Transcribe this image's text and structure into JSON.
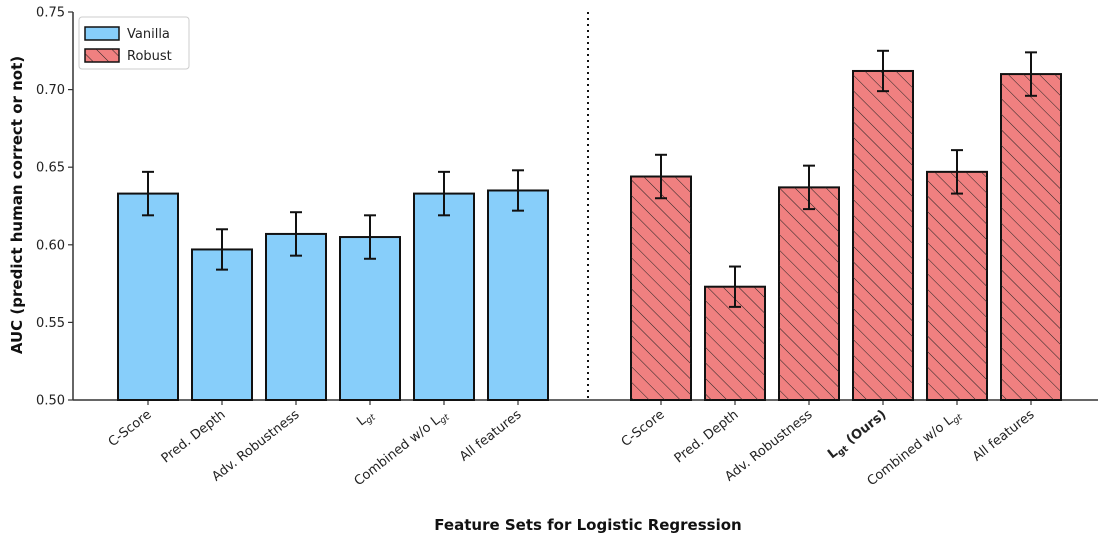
{
  "chart_data": {
    "type": "bar",
    "xlabel": "Feature Sets for Logistic Regression",
    "ylabel": "AUC (predict human correct or not)",
    "ylim": [
      0.5,
      0.75
    ],
    "yticks": [
      "0.50",
      "0.55",
      "0.60",
      "0.65",
      "0.70",
      "0.75"
    ],
    "grid": false,
    "legend": {
      "placement": "top-left",
      "entries": [
        {
          "name": "Vanilla",
          "color": "#87CEFA",
          "hatch": false
        },
        {
          "name": "Robust",
          "color": "#F08080",
          "hatch": true
        }
      ]
    },
    "groups": [
      {
        "series": "Vanilla",
        "color": "#87CEFA",
        "hatch": false,
        "bars": [
          {
            "label": "C-Score",
            "value": 0.633,
            "error": 0.014
          },
          {
            "label": "Pred. Depth",
            "value": 0.597,
            "error": 0.013
          },
          {
            "label": "Adv. Robustness",
            "value": 0.607,
            "error": 0.014
          },
          {
            "label": "Lgt",
            "value": 0.605,
            "error": 0.014
          },
          {
            "label": "Combined w/o Lgt",
            "value": 0.633,
            "error": 0.014
          },
          {
            "label": "All features",
            "value": 0.635,
            "error": 0.013
          }
        ]
      },
      {
        "series": "Robust",
        "color": "#F08080",
        "hatch": true,
        "bars": [
          {
            "label": "C-Score",
            "value": 0.644,
            "error": 0.014
          },
          {
            "label": "Pred. Depth",
            "value": 0.573,
            "error": 0.013
          },
          {
            "label": "Adv. Robustness",
            "value": 0.637,
            "error": 0.014
          },
          {
            "label": "Lgt (Ours)",
            "value": 0.712,
            "error": 0.013,
            "bold": true
          },
          {
            "label": "Combined w/o Lgt",
            "value": 0.647,
            "error": 0.014
          },
          {
            "label": "All features",
            "value": 0.71,
            "error": 0.014
          }
        ]
      }
    ],
    "separator": "dotted vertical line between groups"
  }
}
